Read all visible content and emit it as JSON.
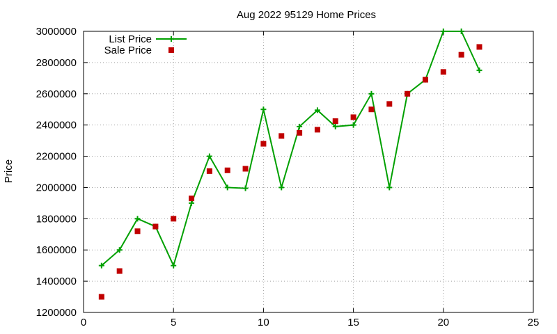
{
  "chart_data": {
    "type": "line",
    "title": "Aug 2022 95129 Home Prices",
    "xlabel": "",
    "ylabel": "Price",
    "xlim": [
      0,
      25
    ],
    "ylim": [
      1200000,
      3000000
    ],
    "x_ticks": [
      0,
      5,
      10,
      15,
      20,
      25
    ],
    "y_ticks": [
      1200000,
      1400000,
      1600000,
      1800000,
      2000000,
      2200000,
      2400000,
      2600000,
      2800000,
      3000000
    ],
    "grid": true,
    "legend_position": "top-left",
    "series": [
      {
        "name": "List Price",
        "style": "line+cross",
        "color": "#00a000",
        "points": [
          [
            1,
            1500000
          ],
          [
            2,
            1600000
          ],
          [
            3,
            1800000
          ],
          [
            4,
            1750000
          ],
          [
            5,
            1500000
          ],
          [
            6,
            1900000
          ],
          [
            7,
            2200000
          ],
          [
            8,
            2000000
          ],
          [
            9,
            1995000
          ],
          [
            10,
            2500000
          ],
          [
            11,
            2000000
          ],
          [
            12,
            2390000
          ],
          [
            13,
            2495000
          ],
          [
            14,
            2390000
          ],
          [
            15,
            2400000
          ],
          [
            16,
            2600000
          ],
          [
            17,
            2000000
          ],
          [
            18,
            2600000
          ],
          [
            19,
            2690000
          ],
          [
            20,
            3000000
          ],
          [
            21,
            3000000
          ],
          [
            22,
            2750000
          ]
        ]
      },
      {
        "name": "Sale Price",
        "style": "square",
        "color": "#c00000",
        "points": [
          [
            1,
            1300000
          ],
          [
            2,
            1465000
          ],
          [
            3,
            1720000
          ],
          [
            4,
            1750000
          ],
          [
            5,
            1800000
          ],
          [
            6,
            1930000
          ],
          [
            7,
            2105000
          ],
          [
            8,
            2110000
          ],
          [
            9,
            2120000
          ],
          [
            10,
            2280000
          ],
          [
            11,
            2330000
          ],
          [
            12,
            2350000
          ],
          [
            13,
            2370000
          ],
          [
            14,
            2425000
          ],
          [
            15,
            2450000
          ],
          [
            16,
            2500000
          ],
          [
            17,
            2535000
          ],
          [
            18,
            2600000
          ],
          [
            19,
            2690000
          ],
          [
            20,
            2740000
          ],
          [
            21,
            2850000
          ],
          [
            22,
            2900000
          ]
        ]
      }
    ]
  }
}
